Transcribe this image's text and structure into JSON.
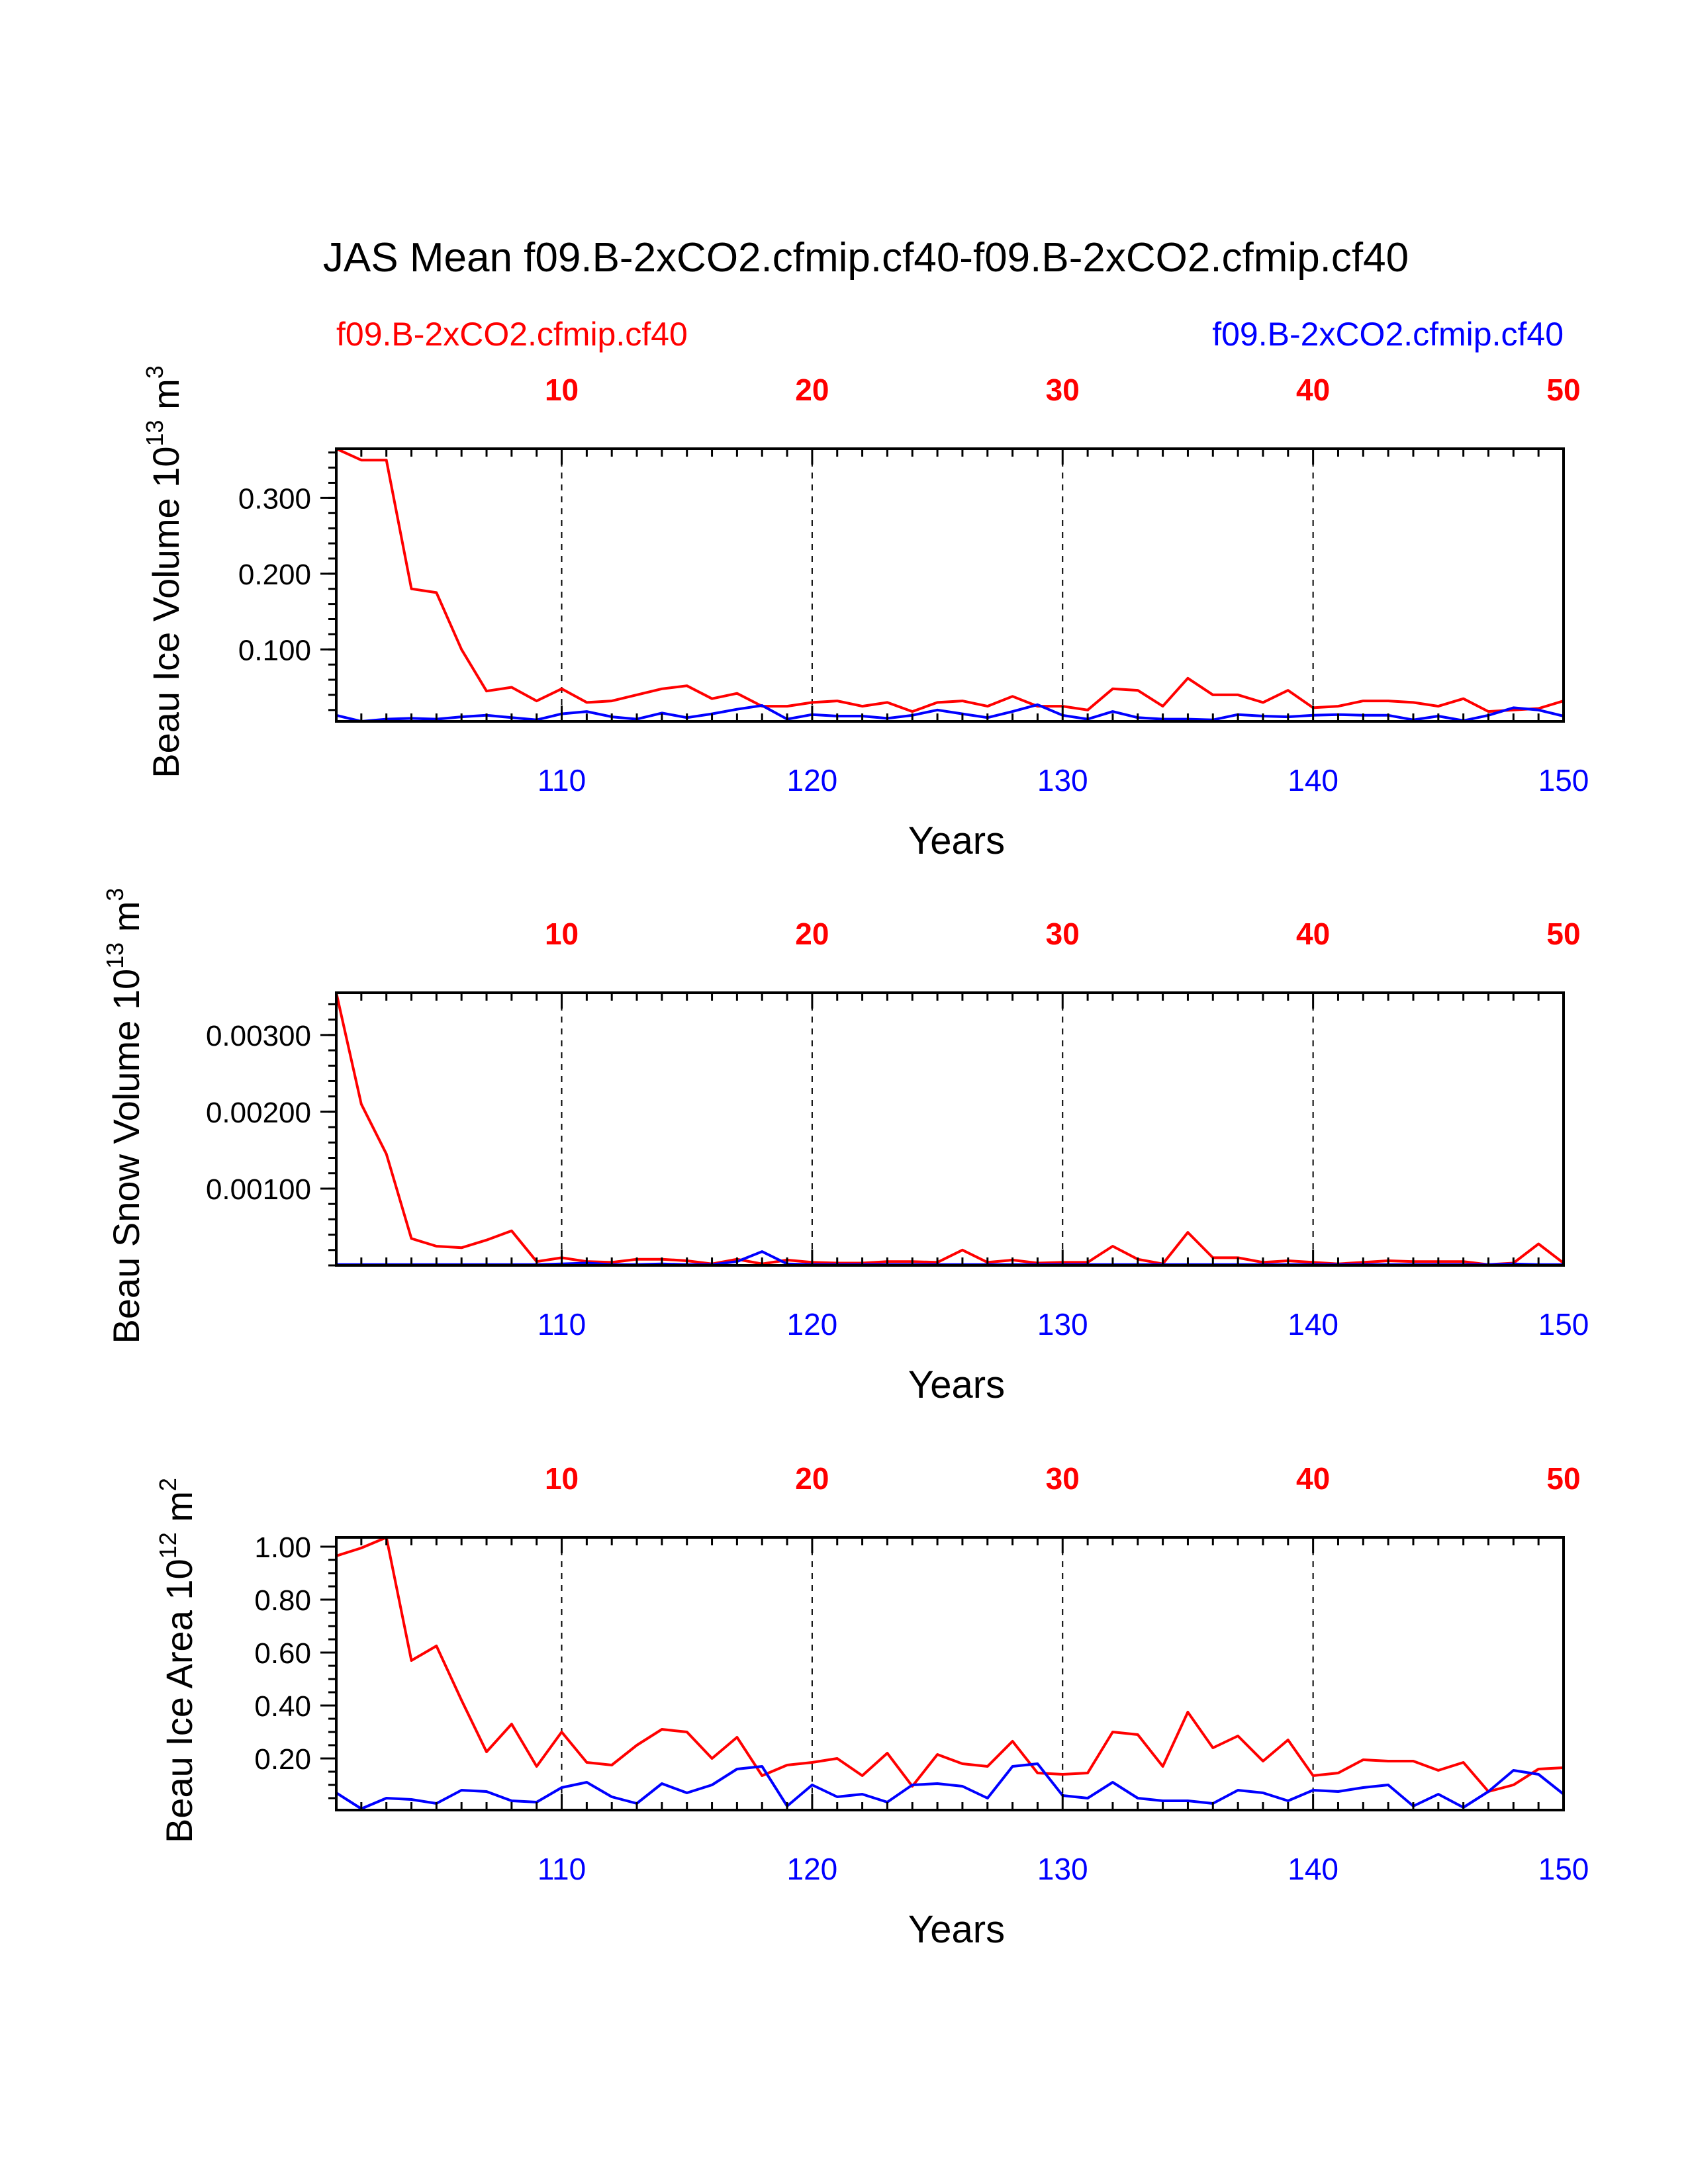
{
  "title": "JAS Mean f09.B-2xCO2.cfmip.cf40-f09.B-2xCO2.cfmip.cf40",
  "legend": {
    "left": "f09.B-2xCO2.cfmip.cf40",
    "right": "f09.B-2xCO2.cfmip.cf40"
  },
  "colors": {
    "case1": "#ff0000",
    "case2": "#0000ff",
    "axis": "#000000"
  },
  "chart_data": [
    {
      "type": "line",
      "id": "ice-volume",
      "ylabel_main": "Beau Ice Volume 10",
      "ylabel_exp": "13",
      "ylabel_unit": " m",
      "ylabel_unit_exp": "3",
      "xlabel": "Years",
      "xlim": [
        101,
        150
      ],
      "ylim": [
        0.005,
        0.365
      ],
      "yticks": [
        0.1,
        0.2,
        0.3
      ],
      "yticklabels": [
        "0.100",
        "0.200",
        "0.300"
      ],
      "ymin_step": 0.02,
      "bottom_ticks": [
        110,
        120,
        130,
        140,
        150
      ],
      "top_ticks": [
        10,
        20,
        30,
        40,
        50
      ],
      "gridlines": [
        110,
        120,
        130,
        140
      ],
      "series": [
        {
          "name": "f09.B-2xCO2.cfmip.cf40",
          "color": "#ff0000",
          "values": [
            0.365,
            0.35,
            0.35,
            0.18,
            0.175,
            0.1,
            0.045,
            0.05,
            0.032,
            0.048,
            0.03,
            0.032,
            0.04,
            0.048,
            0.052,
            0.035,
            0.042,
            0.025,
            0.025,
            0.03,
            0.032,
            0.025,
            0.03,
            0.018,
            0.03,
            0.032,
            0.025,
            0.038,
            0.025,
            0.025,
            0.02,
            0.048,
            0.046,
            0.025,
            0.062,
            0.04,
            0.04,
            0.03,
            0.046,
            0.023,
            0.025,
            0.032,
            0.032,
            0.03,
            0.025,
            0.035,
            0.018,
            0.02,
            0.022,
            0.032
          ]
        },
        {
          "name": "f09.B-2xCO2.cfmip.cf40",
          "color": "#0000ff",
          "values": [
            0.013,
            0.005,
            0.008,
            0.009,
            0.008,
            0.011,
            0.013,
            0.01,
            0.007,
            0.015,
            0.018,
            0.011,
            0.008,
            0.016,
            0.01,
            0.015,
            0.021,
            0.026,
            0.008,
            0.014,
            0.012,
            0.012,
            0.009,
            0.013,
            0.02,
            0.015,
            0.01,
            0.018,
            0.027,
            0.013,
            0.008,
            0.018,
            0.01,
            0.008,
            0.008,
            0.007,
            0.014,
            0.012,
            0.011,
            0.013,
            0.014,
            0.013,
            0.013,
            0.007,
            0.012,
            0.006,
            0.013,
            0.023,
            0.02,
            0.012
          ]
        }
      ]
    },
    {
      "type": "line",
      "id": "snow-volume",
      "ylabel_main": "Beau Snow Volume 10",
      "ylabel_exp": "13",
      "ylabel_unit": " m",
      "ylabel_unit_exp": "3",
      "xlabel": "Years",
      "xlim": [
        101,
        150
      ],
      "ylim": [
        0.0,
        0.00355
      ],
      "yticks": [
        0.001,
        0.002,
        0.003
      ],
      "yticklabels": [
        "0.00100",
        "0.00200",
        "0.00300"
      ],
      "ymin_step": 0.0002,
      "bottom_ticks": [
        110,
        120,
        130,
        140,
        150
      ],
      "top_ticks": [
        10,
        20,
        30,
        40,
        50
      ],
      "gridlines": [
        110,
        120,
        130,
        140
      ],
      "series": [
        {
          "name": "f09.B-2xCO2.cfmip.cf40",
          "color": "#ff0000",
          "values": [
            0.00355,
            0.0021,
            0.00145,
            0.00035,
            0.00025,
            0.00023,
            0.00033,
            0.00045,
            5e-05,
            0.0001,
            5e-05,
            4e-05,
            8e-05,
            8e-05,
            6e-05,
            2e-05,
            8e-05,
            2e-05,
            7e-05,
            4e-05,
            3e-05,
            3e-05,
            5e-05,
            5e-05,
            4e-05,
            0.0002,
            4e-05,
            7e-05,
            3e-05,
            4e-05,
            4e-05,
            0.00025,
            8e-05,
            2e-05,
            0.00043,
            0.0001,
            0.0001,
            4e-05,
            6e-05,
            4e-05,
            2e-05,
            4e-05,
            6e-05,
            5e-05,
            5e-05,
            5e-05,
            1e-05,
            3e-05,
            0.00028,
            3e-05
          ]
        },
        {
          "name": "f09.B-2xCO2.cfmip.cf40",
          "color": "#0000ff",
          "values": [
            1e-05,
            1e-05,
            1e-05,
            1e-05,
            1e-05,
            1e-05,
            1e-05,
            1e-05,
            1e-05,
            2e-05,
            3e-05,
            1e-05,
            1e-05,
            2e-05,
            1e-05,
            1e-05,
            5e-05,
            0.00018,
            2e-05,
            1e-05,
            1e-05,
            1e-05,
            1e-05,
            1e-05,
            1e-05,
            1e-05,
            1e-05,
            1e-05,
            1e-05,
            1e-05,
            1e-05,
            1e-05,
            1e-05,
            1e-05,
            1e-05,
            1e-05,
            1e-05,
            1e-05,
            1e-05,
            1e-05,
            1e-05,
            1e-05,
            1e-05,
            1e-05,
            1e-05,
            1e-05,
            1e-05,
            2e-05,
            1e-05,
            1e-05
          ]
        }
      ]
    },
    {
      "type": "line",
      "id": "ice-area",
      "ylabel_main": "Beau Ice Area 10",
      "ylabel_exp": "12",
      "ylabel_unit": " m",
      "ylabel_unit_exp": "2",
      "xlabel": "Years",
      "xlim": [
        101,
        150
      ],
      "ylim": [
        0.005,
        1.035
      ],
      "yticks": [
        0.2,
        0.4,
        0.6,
        0.8,
        1.0
      ],
      "yticklabels": [
        "0.20",
        "0.40",
        "0.60",
        "0.80",
        "1.00"
      ],
      "ymin_step": 0.05,
      "bottom_ticks": [
        110,
        120,
        130,
        140,
        150
      ],
      "top_ticks": [
        10,
        20,
        30,
        40,
        50
      ],
      "gridlines": [
        110,
        120,
        130,
        140
      ],
      "series": [
        {
          "name": "f09.B-2xCO2.cfmip.cf40",
          "color": "#ff0000",
          "values": [
            0.965,
            0.995,
            1.035,
            0.57,
            0.625,
            0.42,
            0.225,
            0.33,
            0.17,
            0.3,
            0.185,
            0.175,
            0.25,
            0.31,
            0.3,
            0.2,
            0.28,
            0.135,
            0.175,
            0.185,
            0.2,
            0.135,
            0.22,
            0.095,
            0.215,
            0.18,
            0.17,
            0.265,
            0.145,
            0.14,
            0.145,
            0.3,
            0.29,
            0.17,
            0.375,
            0.24,
            0.285,
            0.19,
            0.27,
            0.135,
            0.145,
            0.195,
            0.19,
            0.19,
            0.155,
            0.185,
            0.075,
            0.1,
            0.16,
            0.165
          ]
        },
        {
          "name": "f09.B-2xCO2.cfmip.cf40",
          "color": "#0000ff",
          "values": [
            0.07,
            0.01,
            0.05,
            0.045,
            0.03,
            0.08,
            0.075,
            0.04,
            0.035,
            0.09,
            0.11,
            0.055,
            0.03,
            0.105,
            0.07,
            0.1,
            0.16,
            0.17,
            0.02,
            0.1,
            0.055,
            0.065,
            0.035,
            0.1,
            0.105,
            0.095,
            0.05,
            0.17,
            0.18,
            0.06,
            0.05,
            0.11,
            0.05,
            0.04,
            0.04,
            0.03,
            0.08,
            0.07,
            0.04,
            0.08,
            0.075,
            0.09,
            0.1,
            0.02,
            0.065,
            0.015,
            0.075,
            0.155,
            0.14,
            0.065
          ]
        }
      ]
    }
  ]
}
